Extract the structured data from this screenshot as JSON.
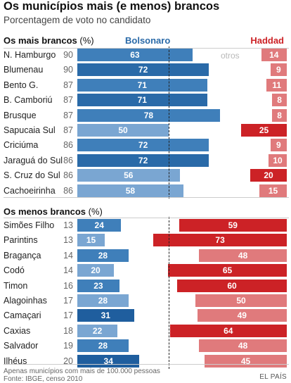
{
  "title": "Os municípios mais (e menos) brancos",
  "subtitle": "Porcentagem de voto no candidato",
  "colors": {
    "bolsonaro": "#2a6aa8",
    "bolsonaro_light": "#7aa6d2",
    "haddad": "#cc2226",
    "haddad_light": "#e07a7c"
  },
  "chart_data": [
    {
      "type": "bar",
      "section_title": "Os mais brancos",
      "section_suffix": "(%)",
      "series": [
        {
          "name": "Bolsonaro"
        },
        {
          "name": "Haddad"
        }
      ],
      "other_label": "otros",
      "rows": [
        {
          "city": "N. Hamburgo",
          "white_pct": 90,
          "bolsonaro": 63,
          "haddad": 14
        },
        {
          "city": "Blumenau",
          "white_pct": 90,
          "bolsonaro": 72,
          "haddad": 9
        },
        {
          "city": "Bento G.",
          "white_pct": 87,
          "bolsonaro": 71,
          "haddad": 11
        },
        {
          "city": "B. Camboriú",
          "white_pct": 87,
          "bolsonaro": 71,
          "haddad": 8
        },
        {
          "city": "Brusque",
          "white_pct": 87,
          "bolsonaro": 78,
          "haddad": 8
        },
        {
          "city": "Sapucaia Sul",
          "white_pct": 87,
          "bolsonaro": 50,
          "haddad": 25
        },
        {
          "city": "Criciúma",
          "white_pct": 86,
          "bolsonaro": 72,
          "haddad": 9
        },
        {
          "city": "Jaraguá do Sul",
          "white_pct": 86,
          "bolsonaro": 72,
          "haddad": 10
        },
        {
          "city": "S. Cruz do Sul",
          "white_pct": 86,
          "bolsonaro": 56,
          "haddad": 20
        },
        {
          "city": "Cachoeirinha",
          "white_pct": 86,
          "bolsonaro": 58,
          "haddad": 15
        }
      ]
    },
    {
      "type": "bar",
      "section_title": "Os menos brancos",
      "section_suffix": "(%)",
      "rows": [
        {
          "city": "Simões Filho",
          "white_pct": 13,
          "bolsonaro": 24,
          "haddad": 59
        },
        {
          "city": "Parintins",
          "white_pct": 13,
          "bolsonaro": 15,
          "haddad": 73
        },
        {
          "city": "Bragança",
          "white_pct": 14,
          "bolsonaro": 28,
          "haddad": 48
        },
        {
          "city": "Codó",
          "white_pct": 14,
          "bolsonaro": 20,
          "haddad": 65
        },
        {
          "city": "Timon",
          "white_pct": 16,
          "bolsonaro": 23,
          "haddad": 60
        },
        {
          "city": "Alagoinhas",
          "white_pct": 17,
          "bolsonaro": 28,
          "haddad": 50
        },
        {
          "city": "Camaçari",
          "white_pct": 17,
          "bolsonaro": 31,
          "haddad": 49
        },
        {
          "city": "Caxias",
          "white_pct": 18,
          "bolsonaro": 22,
          "haddad": 64
        },
        {
          "city": "Salvador",
          "white_pct": 19,
          "bolsonaro": 28,
          "haddad": 48
        },
        {
          "city": "Ilhéus",
          "white_pct": 20,
          "bolsonaro": 34,
          "haddad": 45
        }
      ]
    }
  ],
  "footer": {
    "note": "Apenas municípios com mais de 100.000 pessoas",
    "source": "Fonte: IBGE, censo 2010",
    "credit": "EL PAÍS"
  }
}
